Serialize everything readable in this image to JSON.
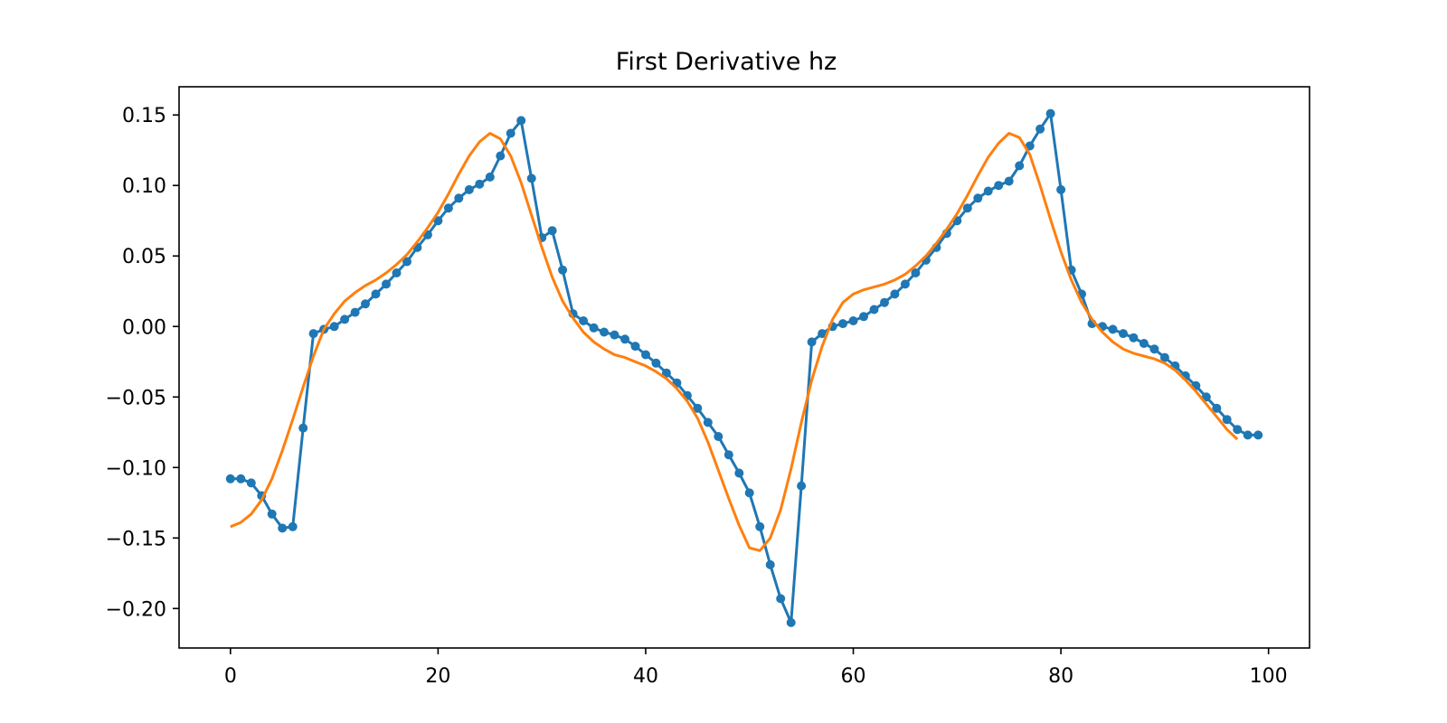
{
  "chart_data": {
    "type": "line",
    "title": "First Derivative hz",
    "xlabel": "",
    "ylabel": "",
    "xlim": [
      -4.95,
      103.95
    ],
    "ylim": [
      -0.228,
      0.17
    ],
    "x_ticks": [
      0,
      20,
      40,
      60,
      80,
      100
    ],
    "x_tick_labels": [
      "0",
      "20",
      "40",
      "60",
      "80",
      "100"
    ],
    "y_ticks": [
      0.15,
      0.1,
      0.05,
      0.0,
      -0.05,
      -0.1,
      -0.15,
      -0.2
    ],
    "y_tick_labels": [
      "0.15",
      "0.10",
      "0.05",
      "0.00",
      "−0.05",
      "−0.10",
      "−0.15",
      "−0.20"
    ],
    "grid": false,
    "legend": "none",
    "series": [
      {
        "color": "#1f77b4",
        "markers": true,
        "x": [
          0,
          1,
          2,
          3,
          4,
          5,
          6,
          7,
          8,
          9,
          10,
          11,
          12,
          13,
          14,
          15,
          16,
          17,
          18,
          19,
          20,
          21,
          22,
          23,
          24,
          25,
          26,
          27,
          28,
          29,
          30,
          31,
          32,
          33,
          34,
          35,
          36,
          37,
          38,
          39,
          40,
          41,
          42,
          43,
          44,
          45,
          46,
          47,
          48,
          49,
          50,
          51,
          52,
          53,
          54,
          55,
          56,
          57,
          58,
          59,
          60,
          61,
          62,
          63,
          64,
          65,
          66,
          67,
          68,
          69,
          70,
          71,
          72,
          73,
          74,
          75,
          76,
          77,
          78,
          79,
          80,
          81,
          82,
          83,
          84,
          85,
          86,
          87,
          88,
          89,
          90,
          91,
          92,
          93,
          94,
          95,
          96,
          97,
          98,
          99
        ],
        "y": [
          -0.108,
          -0.108,
          -0.111,
          -0.12,
          -0.133,
          -0.143,
          -0.142,
          -0.072,
          -0.005,
          -0.002,
          0.0,
          0.005,
          0.01,
          0.016,
          0.023,
          0.03,
          0.038,
          0.046,
          0.056,
          0.065,
          0.075,
          0.084,
          0.091,
          0.097,
          0.101,
          0.106,
          0.121,
          0.137,
          0.146,
          0.105,
          0.063,
          0.068,
          0.04,
          0.009,
          0.004,
          -0.001,
          -0.004,
          -0.006,
          -0.009,
          -0.014,
          -0.02,
          -0.026,
          -0.033,
          -0.04,
          -0.049,
          -0.058,
          -0.068,
          -0.078,
          -0.091,
          -0.104,
          -0.118,
          -0.142,
          -0.169,
          -0.193,
          -0.21,
          -0.113,
          -0.011,
          -0.005,
          0.0,
          0.002,
          0.004,
          0.007,
          0.012,
          0.017,
          0.023,
          0.03,
          0.038,
          0.047,
          0.056,
          0.066,
          0.075,
          0.084,
          0.091,
          0.096,
          0.1,
          0.103,
          0.114,
          0.128,
          0.14,
          0.151,
          0.097,
          0.04,
          0.023,
          0.002,
          0.0,
          -0.002,
          -0.005,
          -0.008,
          -0.012,
          -0.016,
          -0.022,
          -0.028,
          -0.035,
          -0.042,
          -0.05,
          -0.058,
          -0.066,
          -0.073,
          -0.077,
          -0.077
        ]
      },
      {
        "color": "#ff7f0e",
        "markers": false,
        "x": [
          0,
          1,
          2,
          3,
          4,
          5,
          6,
          7,
          8,
          9,
          10,
          11,
          12,
          13,
          14,
          15,
          16,
          17,
          18,
          19,
          20,
          21,
          22,
          23,
          24,
          25,
          26,
          27,
          28,
          29,
          30,
          31,
          32,
          33,
          34,
          35,
          36,
          37,
          38,
          39,
          40,
          41,
          42,
          43,
          44,
          45,
          46,
          47,
          48,
          49,
          50,
          51,
          52,
          53,
          54,
          55,
          56,
          57,
          58,
          59,
          60,
          61,
          62,
          63,
          64,
          65,
          66,
          67,
          68,
          69,
          70,
          71,
          72,
          73,
          74,
          75,
          76,
          77,
          78,
          79,
          80,
          81,
          82,
          83,
          84,
          85,
          86,
          87,
          88,
          89,
          90,
          91,
          92,
          93,
          94,
          95,
          96,
          97
        ],
        "y": [
          -0.142,
          -0.139,
          -0.133,
          -0.123,
          -0.108,
          -0.088,
          -0.066,
          -0.043,
          -0.021,
          -0.002,
          0.009,
          0.018,
          0.024,
          0.029,
          0.033,
          0.038,
          0.044,
          0.051,
          0.06,
          0.07,
          0.081,
          0.094,
          0.108,
          0.121,
          0.131,
          0.137,
          0.133,
          0.121,
          0.102,
          0.079,
          0.056,
          0.035,
          0.018,
          0.006,
          -0.004,
          -0.011,
          -0.016,
          -0.02,
          -0.022,
          -0.025,
          -0.028,
          -0.032,
          -0.037,
          -0.044,
          -0.053,
          -0.065,
          -0.082,
          -0.102,
          -0.122,
          -0.141,
          -0.157,
          -0.159,
          -0.15,
          -0.13,
          -0.101,
          -0.068,
          -0.038,
          -0.014,
          0.005,
          0.017,
          0.023,
          0.026,
          0.028,
          0.03,
          0.033,
          0.037,
          0.043,
          0.05,
          0.059,
          0.069,
          0.08,
          0.093,
          0.107,
          0.12,
          0.13,
          0.137,
          0.134,
          0.122,
          0.1,
          0.076,
          0.053,
          0.033,
          0.017,
          0.005,
          -0.004,
          -0.011,
          -0.016,
          -0.019,
          -0.021,
          -0.023,
          -0.026,
          -0.031,
          -0.038,
          -0.046,
          -0.055,
          -0.064,
          -0.073,
          -0.08
        ]
      }
    ]
  }
}
